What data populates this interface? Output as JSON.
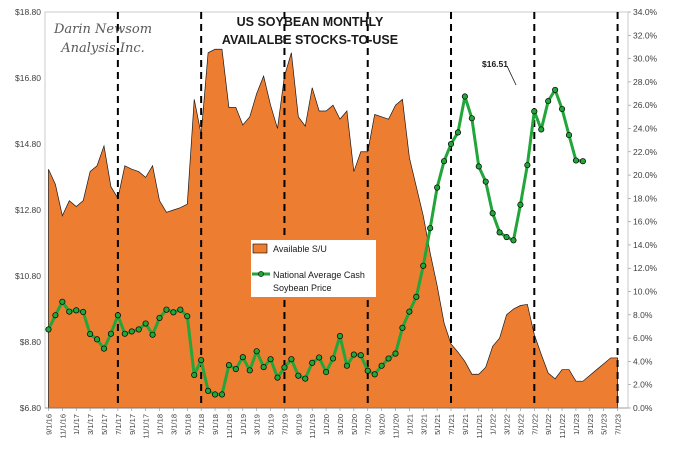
{
  "chart_data": {
    "type": "area+line",
    "title_lines": [
      "US SOYBEAN MONTHLY",
      "AVAILALBE STOCKS-TO-USE"
    ],
    "watermark_lines": [
      "Darin Newsom",
      "Analysis Inc."
    ],
    "x_tick_labels": [
      "9/1/16",
      "11/1/16",
      "1/1/17",
      "3/1/17",
      "5/1/17",
      "7/1/17",
      "9/1/17",
      "11/1/17",
      "1/1/18",
      "3/1/18",
      "5/1/18",
      "7/1/18",
      "9/1/18",
      "11/1/18",
      "1/1/19",
      "3/1/19",
      "5/1/19",
      "7/1/19",
      "9/1/19",
      "11/1/19",
      "1/1/20",
      "3/1/20",
      "5/1/20",
      "7/1/20",
      "9/1/20",
      "11/1/20",
      "1/1/21",
      "3/1/21",
      "5/1/21",
      "7/1/21",
      "9/1/21",
      "11/1/21",
      "1/1/22",
      "3/1/22",
      "5/1/22",
      "7/1/22",
      "9/1/22",
      "11/1/22",
      "1/1/23",
      "3/1/23",
      "5/1/23",
      "7/1/23"
    ],
    "months_total": 84,
    "left_axis": {
      "min": 6.8,
      "max": 18.8,
      "ticks": [
        "$6.80",
        "$8.80",
        "$10.80",
        "$12.80",
        "$14.80",
        "$16.80",
        "$18.80"
      ]
    },
    "right_axis": {
      "min": 0,
      "max": 34,
      "ticks": [
        "0.0%",
        "2.0%",
        "4.0%",
        "6.0%",
        "8.0%",
        "10.0%",
        "12.0%",
        "14.0%",
        "16.0%",
        "18.0%",
        "20.0%",
        "22.0%",
        "24.0%",
        "26.0%",
        "28.0%",
        "30.0%",
        "32.0%",
        "34.0%"
      ]
    },
    "series": [
      {
        "name": "Available S/U",
        "type": "area",
        "axis": "right",
        "color": "#ED7D31",
        "values": [
          20.5,
          19.2,
          16.5,
          17.8,
          17.3,
          17.8,
          20.3,
          20.8,
          22.5,
          19.0,
          18.0,
          20.8,
          20.5,
          20.3,
          19.8,
          20.8,
          17.8,
          16.8,
          17.0,
          17.2,
          17.5,
          26.5,
          23.5,
          30.5,
          30.8,
          30.8,
          25.8,
          25.8,
          24.3,
          25.0,
          27.0,
          28.5,
          26.0,
          24.0,
          28.5,
          30.5,
          25.0,
          24.2,
          27.5,
          25.5,
          25.5,
          26.0,
          24.8,
          25.5,
          20.3,
          22.0,
          22.0,
          25.2,
          25.0,
          24.8,
          26.0,
          26.5,
          21.5,
          19.0,
          16.5,
          13.3,
          10.5,
          7.3,
          5.5,
          4.8,
          4.0,
          2.9,
          2.9,
          3.5,
          5.3,
          6.0,
          8.0,
          8.5,
          8.8,
          8.9,
          6.3,
          4.6,
          3.0,
          2.5,
          3.3,
          3.3,
          2.3,
          2.3,
          2.8,
          3.3,
          3.8,
          4.3,
          4.3
        ],
        "start_index": 0
      },
      {
        "name": "National Average Cash Soybean Price",
        "type": "line",
        "axis": "left",
        "color": "#22A63A",
        "values": [
          9.18,
          9.61,
          10.02,
          9.72,
          9.76,
          9.71,
          9.04,
          8.88,
          8.6,
          9.05,
          9.61,
          9.05,
          9.12,
          9.18,
          9.36,
          9.02,
          9.53,
          9.78,
          9.7,
          9.78,
          9.58,
          7.8,
          8.25,
          7.32,
          7.21,
          7.21,
          8.1,
          7.98,
          8.34,
          7.94,
          8.52,
          8.04,
          8.28,
          7.72,
          8.03,
          8.28,
          7.78,
          7.69,
          8.17,
          8.33,
          7.89,
          8.3,
          8.98,
          8.08,
          8.42,
          8.4,
          7.93,
          7.82,
          8.08,
          8.3,
          8.45,
          9.23,
          9.72,
          10.17,
          11.11,
          12.25,
          13.48,
          14.28,
          14.8,
          15.15,
          16.24,
          15.58,
          14.12,
          13.66,
          12.7,
          12.12,
          11.98,
          11.88,
          12.96,
          14.16,
          15.79,
          15.24,
          16.1,
          16.44,
          15.86,
          15.07,
          14.3,
          14.28
        ],
        "start_index": 0
      }
    ],
    "annotations": [
      {
        "text": "$16.51"
      }
    ],
    "vertical_dashed_lines_at_month_index": [
      10,
      22,
      34,
      46,
      58,
      70,
      82
    ],
    "legend_position": "center"
  }
}
